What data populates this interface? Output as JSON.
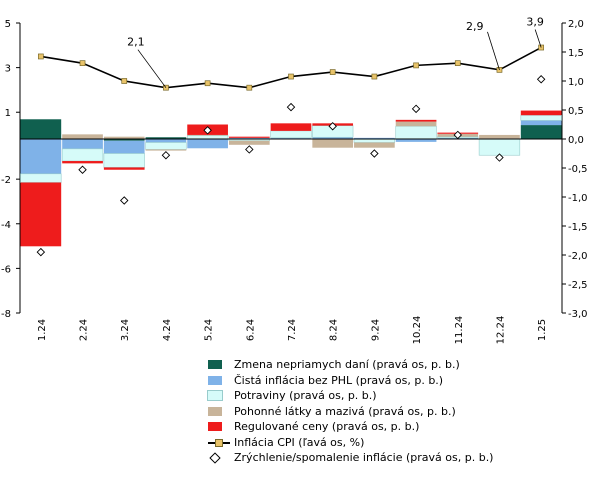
{
  "colors": {
    "indirect_taxes": "#10604f",
    "core_inflation": "#7fb2e8",
    "food": "#d6fbf9",
    "fuels": "#c8b49a",
    "regulated": "#ee1c1c",
    "cpi_line": "#000000",
    "cpi_marker": "#e8c36a"
  },
  "chart_data": {
    "type": "bar",
    "categories": [
      "1.24",
      "2.24",
      "3.24",
      "4.24",
      "5.24",
      "6.24",
      "7.24",
      "8.24",
      "9.24",
      "10.24",
      "11.24",
      "12.24",
      "1.25"
    ],
    "left_axis": {
      "ylim": [
        -8,
        5
      ],
      "ticks": [
        -8,
        -6,
        -4,
        -2,
        1,
        3,
        5
      ]
    },
    "right_axis": {
      "ylim": [
        -3.0,
        2.0
      ],
      "ticks": [
        "-3,0",
        "-2,5",
        "-2,0",
        "-1,5",
        "-1,0",
        "-0,5",
        "0,0",
        "0,5",
        "1,0",
        "1,5",
        "2,0"
      ]
    },
    "series": [
      {
        "name": "Zmena nepriamych daní (pravá os, p. b.)",
        "axis": "right",
        "values": [
          0.34,
          0,
          -0.03,
          0.03,
          0,
          0,
          0,
          0,
          0,
          0,
          0,
          0,
          0.24
        ]
      },
      {
        "name": "Čistá inflácia bez PHL (pravá os, p. b.)",
        "axis": "right",
        "values": [
          -0.6,
          -0.17,
          -0.22,
          -0.06,
          -0.16,
          0.02,
          0.02,
          0.03,
          0.02,
          -0.05,
          0.02,
          0.01,
          0.08
        ]
      },
      {
        "name": "Potraviny (pravá os, p. b.)",
        "axis": "right",
        "values": [
          -0.15,
          -0.21,
          -0.24,
          -0.12,
          0.06,
          -0.03,
          0.12,
          0.2,
          -0.06,
          0.22,
          0.02,
          -0.28,
          0.09
        ]
      },
      {
        "name": "Pohonné látky a mazivá (pravá os, p. b.)",
        "axis": "right",
        "values": [
          0,
          0.08,
          0.04,
          -0.02,
          0.01,
          -0.07,
          0,
          -0.15,
          -0.09,
          0.08,
          0.05,
          0.06,
          0
        ]
      },
      {
        "name": "Regulované ceny (pravá os, p. b.)",
        "axis": "right",
        "values": [
          -1.1,
          -0.04,
          -0.04,
          0,
          0.18,
          0.02,
          0.13,
          0.04,
          0,
          0.03,
          0.02,
          0,
          0.08
        ]
      }
    ],
    "line": {
      "name": "Inflácia CPI (ľavá os, %)",
      "axis": "left",
      "values": [
        3.5,
        3.2,
        2.4,
        2.1,
        2.3,
        2.1,
        2.6,
        2.8,
        2.6,
        3.1,
        3.2,
        2.9,
        3.9
      ]
    },
    "scatter": {
      "name": "Zrýchlenie/spomalenie inflácie (pravá os, p. b.)",
      "axis": "right",
      "values": [
        -1.95,
        -0.53,
        -1.06,
        -0.28,
        0.15,
        -0.18,
        0.55,
        0.22,
        -0.25,
        0.52,
        0.07,
        -0.32,
        1.03
      ]
    },
    "annotations": [
      {
        "category": "4.24",
        "text": "2,1"
      },
      {
        "category": "12.24",
        "text": "2,9"
      },
      {
        "category": "1.25",
        "text": "3,9"
      }
    ],
    "grid": false,
    "legend_position": "bottom"
  }
}
